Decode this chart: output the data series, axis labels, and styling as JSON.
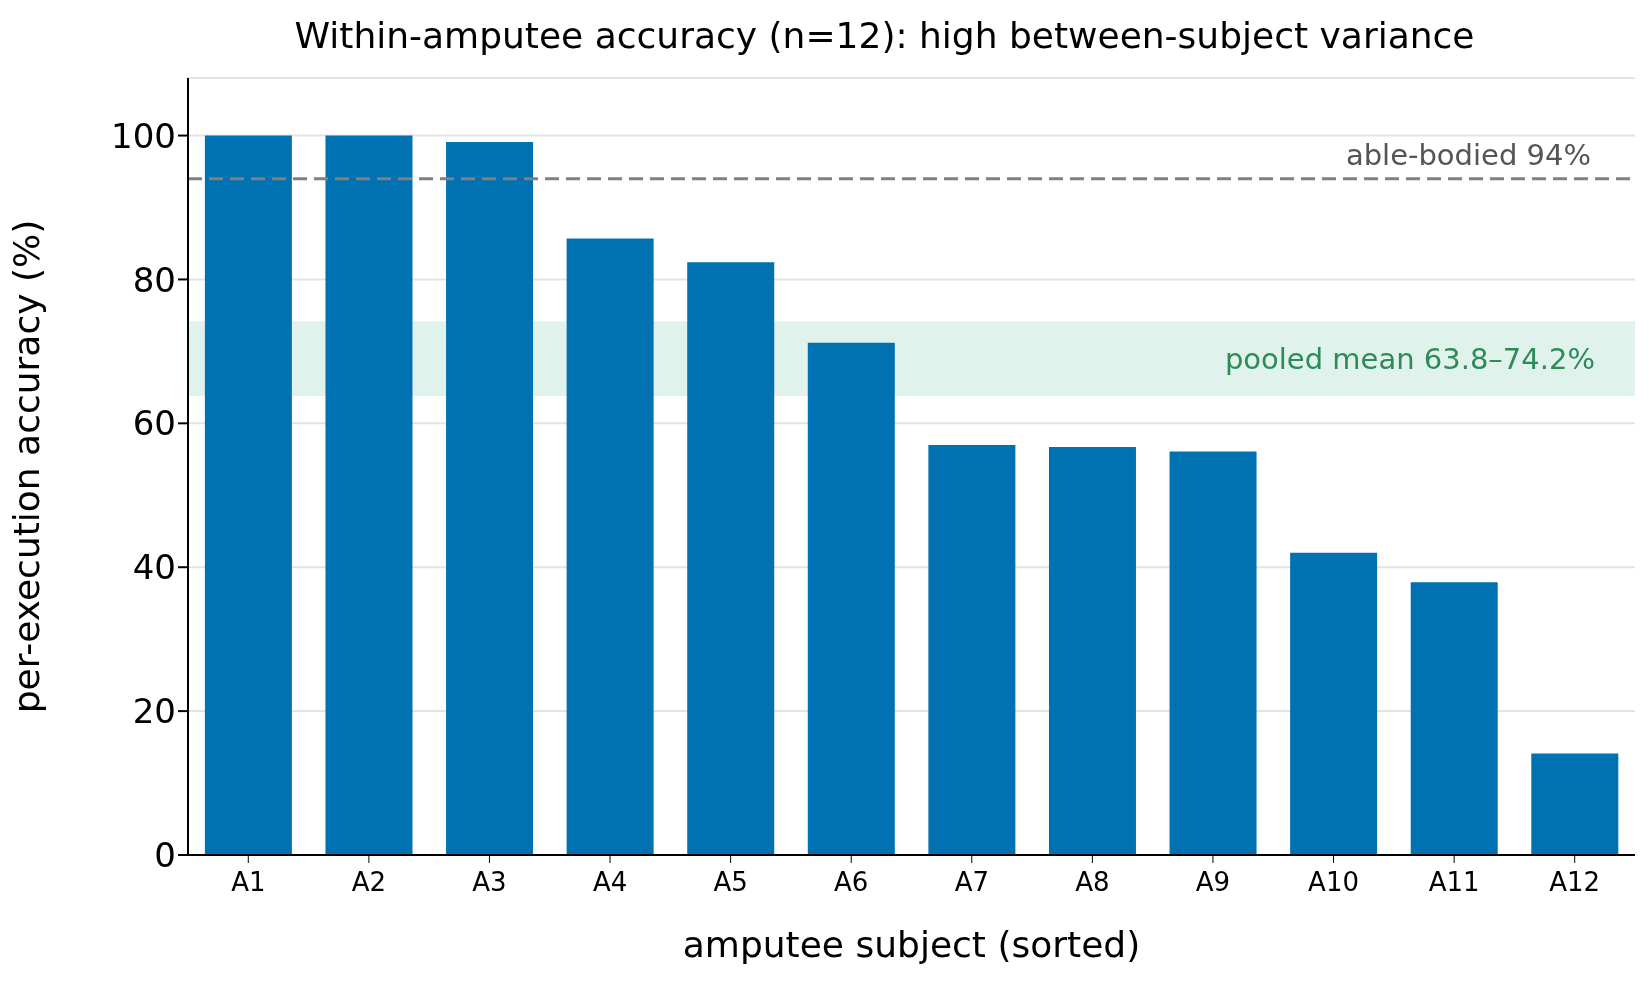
{
  "chart_data": {
    "type": "bar",
    "title": "Within-amputee accuracy (n=12): high between-subject variance",
    "xlabel": "amputee subject (sorted)",
    "ylabel": "per-execution accuracy (%)",
    "categories": [
      "A1",
      "A2",
      "A3",
      "A4",
      "A5",
      "A6",
      "A7",
      "A8",
      "A9",
      "A10",
      "A11",
      "A12"
    ],
    "values": [
      100,
      100,
      99.1,
      85.7,
      82.4,
      71.2,
      57.0,
      56.7,
      56.1,
      42.0,
      37.9,
      14.1
    ],
    "color": "#0072b2",
    "ylim": [
      0,
      108
    ],
    "yticks": [
      0,
      20,
      40,
      60,
      80,
      100
    ],
    "grid": "y",
    "ref_lines": [
      {
        "axis": "y",
        "value": 94,
        "label": "able-bodied 94%",
        "color": "#808080",
        "line_style": "dashed"
      }
    ],
    "bands": [
      {
        "axis": "y",
        "from": 63.8,
        "to": 74.2,
        "label": "pooled mean 63.8–74.2%",
        "color": "#e0f2ec"
      }
    ]
  }
}
